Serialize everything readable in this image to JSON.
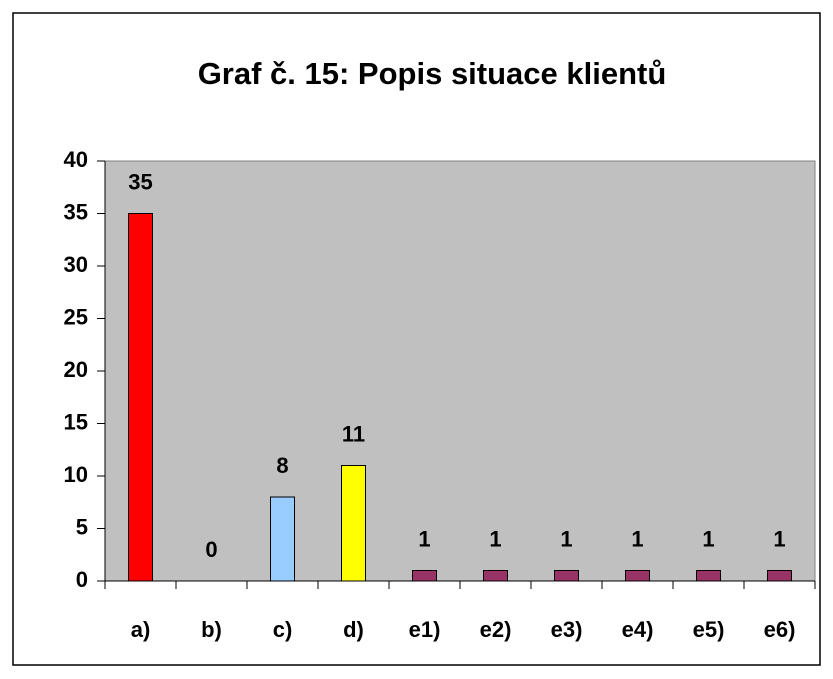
{
  "chart_data": {
    "type": "bar",
    "title": "Graf č. 15: Popis situace klientů",
    "categories": [
      "a)",
      "b)",
      "c)",
      "d)",
      "e1)",
      "e2)",
      "e3)",
      "e4)",
      "e5)",
      "e6)"
    ],
    "values": [
      35,
      0,
      8,
      11,
      1,
      1,
      1,
      1,
      1,
      1
    ],
    "colors": [
      "#ff0000",
      "#ff00ff",
      "#99ccff",
      "#ffff00",
      "#993366",
      "#993366",
      "#993366",
      "#993366",
      "#993366",
      "#993366"
    ],
    "ylim": [
      0,
      40
    ],
    "yticks": [
      0,
      5,
      10,
      15,
      20,
      25,
      30,
      35,
      40
    ],
    "grid": false,
    "plot_background": "#c0c0c0"
  }
}
